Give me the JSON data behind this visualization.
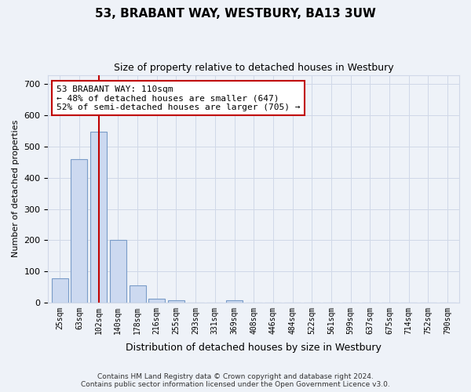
{
  "title": "53, BRABANT WAY, WESTBURY, BA13 3UW",
  "subtitle": "Size of property relative to detached houses in Westbury",
  "xlabel": "Distribution of detached houses by size in Westbury",
  "ylabel": "Number of detached properties",
  "categories": [
    "25sqm",
    "63sqm",
    "102sqm",
    "140sqm",
    "178sqm",
    "216sqm",
    "255sqm",
    "293sqm",
    "331sqm",
    "369sqm",
    "408sqm",
    "446sqm",
    "484sqm",
    "522sqm",
    "561sqm",
    "599sqm",
    "637sqm",
    "675sqm",
    "714sqm",
    "752sqm",
    "790sqm"
  ],
  "values": [
    78,
    460,
    547,
    200,
    55,
    13,
    8,
    0,
    0,
    8,
    0,
    0,
    0,
    0,
    0,
    0,
    0,
    0,
    0,
    0,
    0
  ],
  "bar_color": "#ccd9f0",
  "bar_edge_color": "#7a9cc8",
  "highlight_bar_index": 2,
  "highlight_color": "#c00000",
  "grid_color": "#d0d8e8",
  "background_color": "#eef2f8",
  "annotation_text": "53 BRABANT WAY: 110sqm\n← 48% of detached houses are smaller (647)\n52% of semi-detached houses are larger (705) →",
  "annotation_box_color": "#ffffff",
  "annotation_box_edge": "#c00000",
  "ylim": [
    0,
    730
  ],
  "yticks": [
    0,
    100,
    200,
    300,
    400,
    500,
    600,
    700
  ],
  "footer_line1": "Contains HM Land Registry data © Crown copyright and database right 2024.",
  "footer_line2": "Contains public sector information licensed under the Open Government Licence v3.0."
}
